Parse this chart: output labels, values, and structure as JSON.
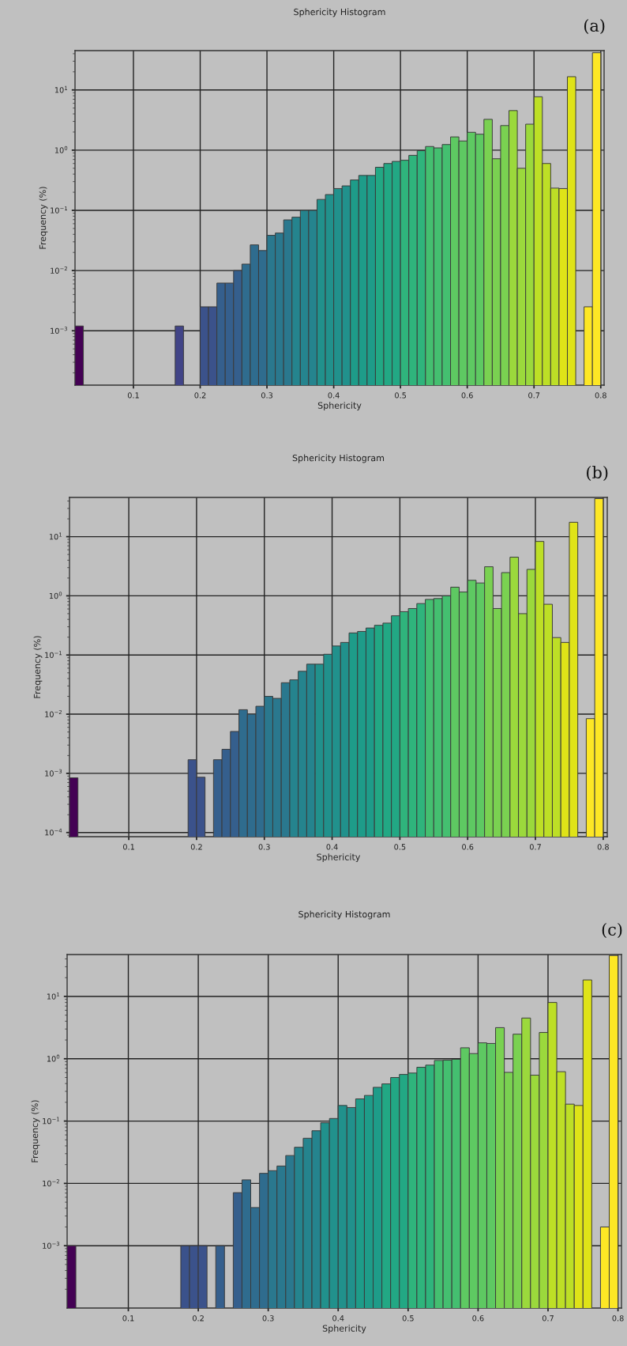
{
  "chart_data": [
    {
      "type": "histogram",
      "title": "Sphericity Histogram",
      "xlabel": "Sphericity",
      "ylabel": "Frequency (%)",
      "annotations": [
        "(a)"
      ],
      "log": true,
      "grid": true,
      "bins": [
        0.0125,
        0.025,
        0.0375,
        0.05,
        0.0625,
        0.075,
        0.0875,
        0.1,
        0.1125,
        0.125,
        0.1375,
        0.15,
        0.1625,
        0.175,
        0.1875,
        0.2,
        0.2125,
        0.225,
        0.2375,
        0.25,
        0.2625,
        0.275,
        0.2875,
        0.3,
        0.3125,
        0.325,
        0.3375,
        0.35,
        0.3625,
        0.375,
        0.3875,
        0.4,
        0.4125,
        0.425,
        0.4375,
        0.45,
        0.4625,
        0.475,
        0.4875,
        0.5,
        0.5125,
        0.525,
        0.5375,
        0.55,
        0.5625,
        0.575,
        0.5875,
        0.6,
        0.6125,
        0.625,
        0.6375,
        0.65,
        0.6625,
        0.675,
        0.6875,
        0.7,
        0.7125,
        0.725,
        0.7375,
        0.75,
        0.7625,
        0.775,
        0.7875,
        0.8
      ],
      "values": [
        0.0012,
        null,
        null,
        null,
        null,
        null,
        null,
        null,
        null,
        null,
        null,
        null,
        0.0012,
        null,
        null,
        0.0025,
        0.0025,
        0.0062,
        0.0062,
        0.01,
        0.0128,
        0.0267,
        0.0215,
        0.0385,
        0.042,
        0.0695,
        0.077,
        0.1,
        0.1,
        0.152,
        0.183,
        0.23,
        0.255,
        0.32,
        0.38,
        0.38,
        0.52,
        0.6,
        0.65,
        0.68,
        0.82,
        0.98,
        1.15,
        1.09,
        1.24,
        1.66,
        1.42,
        1.98,
        1.84,
        3.25,
        0.72,
        2.56,
        4.54,
        0.5,
        2.7,
        7.7,
        0.6,
        0.234,
        0.23,
        16.6,
        null,
        0.0025,
        41.5
      ],
      "colors": [
        "#440154",
        "#471365",
        "#471365",
        "#471365",
        "#482475",
        "#482475",
        "#482475",
        "#463480",
        "#463480",
        "#463480",
        "#414487",
        "#414487",
        "#414487",
        "#3b528b",
        "#3b528b",
        "#3b528b",
        "#3b528b",
        "#355f8d",
        "#355f8d",
        "#355f8d",
        "#2f6c8e",
        "#2f6c8e",
        "#2f6c8e",
        "#2a788e",
        "#2a788e",
        "#2a788e",
        "#25848e",
        "#25848e",
        "#25848e",
        "#21918c",
        "#21918c",
        "#21918c",
        "#21918c",
        "#1e9c89",
        "#1e9c89",
        "#1e9c89",
        "#22a884",
        "#22a884",
        "#22a884",
        "#2fb47c",
        "#2fb47c",
        "#2fb47c",
        "#44bf70",
        "#44bf70",
        "#44bf70",
        "#5ec962",
        "#5ec962",
        "#5ec962",
        "#5ec962",
        "#7ad151",
        "#7ad151",
        "#7ad151",
        "#9bd93c",
        "#9bd93c",
        "#9bd93c",
        "#bddf26",
        "#bddf26",
        "#bddf26",
        "#dfe318",
        "#dfe318",
        "#dfe318",
        "#fde725",
        "#fde725"
      ],
      "xlim": [
        0.0125,
        0.805
      ],
      "ylim": [
        0.000125,
        45
      ],
      "xticks": [
        0.1,
        0.2,
        0.3,
        0.4,
        0.5,
        0.6,
        0.7,
        0.8
      ],
      "yticks": [
        {
          "value": 0.001,
          "label": "10$^{−3}$"
        },
        {
          "value": 0.01,
          "label": "10$^{−2}$"
        },
        {
          "value": 0.1,
          "label": "10$^{−1}$"
        },
        {
          "value": 1,
          "label": "10$^{0}$"
        },
        {
          "value": 10,
          "label": "10$^{1}$"
        }
      ]
    },
    {
      "type": "histogram",
      "title": "Sphericity Histogram",
      "xlabel": "Sphericity",
      "ylabel": "Frequency (%)",
      "annotations": [
        "(b)"
      ],
      "log": true,
      "grid": true,
      "bins": [
        0.0125,
        0.025,
        0.0375,
        0.05,
        0.0625,
        0.075,
        0.0875,
        0.1,
        0.1125,
        0.125,
        0.1375,
        0.15,
        0.1625,
        0.175,
        0.1875,
        0.2,
        0.2125,
        0.225,
        0.2375,
        0.25,
        0.2625,
        0.275,
        0.2875,
        0.3,
        0.3125,
        0.325,
        0.3375,
        0.35,
        0.3625,
        0.375,
        0.3875,
        0.4,
        0.4125,
        0.425,
        0.4375,
        0.45,
        0.4625,
        0.475,
        0.4875,
        0.5,
        0.5125,
        0.525,
        0.5375,
        0.55,
        0.5625,
        0.575,
        0.5875,
        0.6,
        0.6125,
        0.625,
        0.6375,
        0.65,
        0.6625,
        0.675,
        0.6875,
        0.7,
        0.7125,
        0.725,
        0.7375,
        0.75,
        0.7625,
        0.775,
        0.7875,
        0.8
      ],
      "values": [
        0.00084,
        null,
        null,
        null,
        null,
        null,
        null,
        null,
        null,
        null,
        null,
        null,
        null,
        null,
        0.0017,
        0.00086,
        null,
        0.0017,
        0.00255,
        0.0051,
        0.0119,
        0.01,
        0.0136,
        0.02,
        0.0185,
        0.034,
        0.038,
        0.053,
        0.07,
        0.07,
        0.103,
        0.142,
        0.163,
        0.236,
        0.25,
        0.286,
        0.318,
        0.346,
        0.46,
        0.54,
        0.61,
        0.74,
        0.87,
        0.9,
        1.0,
        1.4,
        1.16,
        1.83,
        1.65,
        3.1,
        0.61,
        2.47,
        4.5,
        0.5,
        2.8,
        8.3,
        0.72,
        0.197,
        0.163,
        17.5,
        null,
        0.0084,
        44
      ],
      "colors": [
        "#440154",
        "#471365",
        "#471365",
        "#471365",
        "#482475",
        "#482475",
        "#482475",
        "#463480",
        "#463480",
        "#463480",
        "#414487",
        "#414487",
        "#414487",
        "#3b528b",
        "#3b528b",
        "#3b528b",
        "#3b528b",
        "#355f8d",
        "#355f8d",
        "#355f8d",
        "#2f6c8e",
        "#2f6c8e",
        "#2f6c8e",
        "#2a788e",
        "#2a788e",
        "#2a788e",
        "#25848e",
        "#25848e",
        "#25848e",
        "#21918c",
        "#21918c",
        "#21918c",
        "#21918c",
        "#1e9c89",
        "#1e9c89",
        "#1e9c89",
        "#22a884",
        "#22a884",
        "#22a884",
        "#2fb47c",
        "#2fb47c",
        "#2fb47c",
        "#44bf70",
        "#44bf70",
        "#44bf70",
        "#5ec962",
        "#5ec962",
        "#5ec962",
        "#5ec962",
        "#7ad151",
        "#7ad151",
        "#7ad151",
        "#9bd93c",
        "#9bd93c",
        "#9bd93c",
        "#bddf26",
        "#bddf26",
        "#bddf26",
        "#dfe318",
        "#dfe318",
        "#dfe318",
        "#fde725",
        "#fde725"
      ],
      "xlim": [
        0.0125,
        0.806
      ],
      "ylim": [
        8.5e-05,
        46
      ],
      "xticks": [
        0.1,
        0.2,
        0.3,
        0.4,
        0.5,
        0.6,
        0.7,
        0.8
      ],
      "yticks": [
        {
          "value": 0.0001,
          "label": "10$^{−4}$"
        },
        {
          "value": 0.001,
          "label": "10$^{−3}$"
        },
        {
          "value": 0.01,
          "label": "10$^{−2}$"
        },
        {
          "value": 0.1,
          "label": "10$^{−1}$"
        },
        {
          "value": 1,
          "label": "10$^{0}$"
        },
        {
          "value": 10,
          "label": "10$^{1}$"
        }
      ]
    },
    {
      "type": "histogram",
      "title": "Sphericity Histogram",
      "xlabel": "Sphericity",
      "ylabel": "Frequency (%)",
      "annotations": [
        "(c)"
      ],
      "log": true,
      "grid": true,
      "bins": [
        0.0125,
        0.025,
        0.0375,
        0.05,
        0.0625,
        0.075,
        0.0875,
        0.1,
        0.1125,
        0.125,
        0.1375,
        0.15,
        0.1625,
        0.175,
        0.1875,
        0.2,
        0.2125,
        0.225,
        0.2375,
        0.25,
        0.2625,
        0.275,
        0.2875,
        0.3,
        0.3125,
        0.325,
        0.3375,
        0.35,
        0.3625,
        0.375,
        0.3875,
        0.4,
        0.4125,
        0.425,
        0.4375,
        0.45,
        0.4625,
        0.475,
        0.4875,
        0.5,
        0.5125,
        0.525,
        0.5375,
        0.55,
        0.5625,
        0.575,
        0.5875,
        0.6,
        0.6125,
        0.625,
        0.6375,
        0.65,
        0.6625,
        0.675,
        0.6875,
        0.7,
        0.7125,
        0.725,
        0.7375,
        0.75,
        0.7625,
        0.775,
        0.7875,
        0.8
      ],
      "values": [
        0.001,
        null,
        null,
        null,
        null,
        null,
        null,
        null,
        null,
        null,
        null,
        null,
        null,
        0.001,
        0.001,
        0.001,
        null,
        0.001,
        null,
        0.0071,
        0.0114,
        0.0041,
        0.0145,
        0.016,
        0.019,
        0.028,
        0.038,
        0.053,
        0.07,
        0.094,
        0.11,
        0.178,
        0.165,
        0.227,
        0.258,
        0.348,
        0.395,
        0.5,
        0.56,
        0.59,
        0.73,
        0.79,
        0.94,
        0.95,
        0.98,
        1.5,
        1.21,
        1.8,
        1.76,
        3.16,
        0.605,
        2.48,
        4.5,
        0.545,
        2.64,
        8.0,
        0.62,
        0.187,
        0.178,
        18.4,
        null,
        0.002,
        45.4
      ],
      "colors": [
        "#440154",
        "#471365",
        "#471365",
        "#471365",
        "#482475",
        "#482475",
        "#482475",
        "#463480",
        "#463480",
        "#463480",
        "#414487",
        "#414487",
        "#414487",
        "#3b528b",
        "#3b528b",
        "#3b528b",
        "#3b528b",
        "#355f8d",
        "#355f8d",
        "#355f8d",
        "#2f6c8e",
        "#2f6c8e",
        "#2f6c8e",
        "#2a788e",
        "#2a788e",
        "#2a788e",
        "#25848e",
        "#25848e",
        "#25848e",
        "#21918c",
        "#21918c",
        "#21918c",
        "#21918c",
        "#1e9c89",
        "#1e9c89",
        "#1e9c89",
        "#22a884",
        "#22a884",
        "#22a884",
        "#2fb47c",
        "#2fb47c",
        "#2fb47c",
        "#44bf70",
        "#44bf70",
        "#44bf70",
        "#5ec962",
        "#5ec962",
        "#5ec962",
        "#5ec962",
        "#7ad151",
        "#7ad151",
        "#7ad151",
        "#9bd93c",
        "#9bd93c",
        "#9bd93c",
        "#bddf26",
        "#bddf26",
        "#bddf26",
        "#dfe318",
        "#dfe318",
        "#dfe318",
        "#fde725",
        "#fde725"
      ],
      "xlim": [
        0.0125,
        0.805
      ],
      "ylim": [
        0.0001,
        47
      ],
      "xticks": [
        0.1,
        0.2,
        0.3,
        0.4,
        0.5,
        0.6,
        0.7,
        0.8
      ],
      "yticks": [
        {
          "value": 0.001,
          "label": "10$^{−3}$"
        },
        {
          "value": 0.01,
          "label": "10$^{−2}$"
        },
        {
          "value": 0.1,
          "label": "10$^{−1}$"
        },
        {
          "value": 1,
          "label": "10$^{0}$"
        },
        {
          "value": 10,
          "label": "10$^{1}$"
        }
      ]
    }
  ]
}
